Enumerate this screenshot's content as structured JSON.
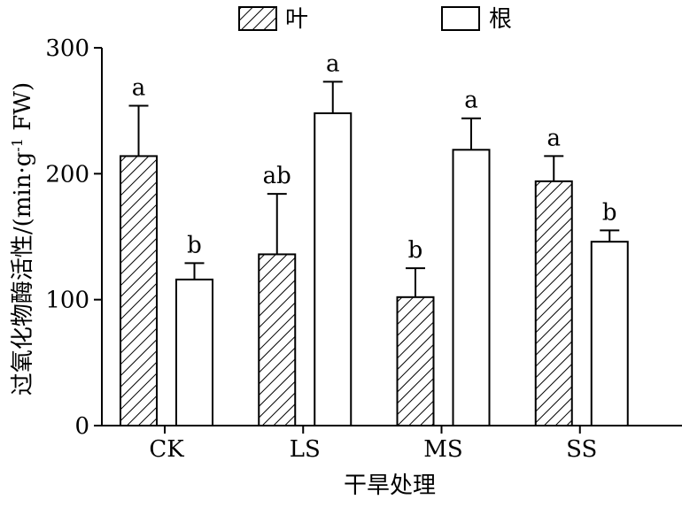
{
  "chart_data": {
    "type": "bar",
    "xlabel": "干旱处理",
    "ylabel": "过氧化物酶活性/(min·g",
    "ylabel_sup": "-1",
    "ylabel_tail": " FW)",
    "categories": [
      "CK",
      "LS",
      "MS",
      "SS"
    ],
    "ylim": [
      0,
      300
    ],
    "yticks": [
      0,
      100,
      200,
      300
    ],
    "legend_position": "top",
    "series": [
      {
        "name": "叶",
        "pattern": "diagonal-hatch",
        "values": [
          214,
          136,
          102,
          194
        ],
        "errors": [
          40,
          48,
          23,
          20
        ],
        "letters": [
          "a",
          "ab",
          "b",
          "a"
        ]
      },
      {
        "name": "根",
        "pattern": "solid-white",
        "values": [
          116,
          248,
          219,
          146
        ],
        "errors": [
          13,
          25,
          25,
          9
        ],
        "letters": [
          "b",
          "a",
          "a",
          "b"
        ]
      }
    ]
  }
}
